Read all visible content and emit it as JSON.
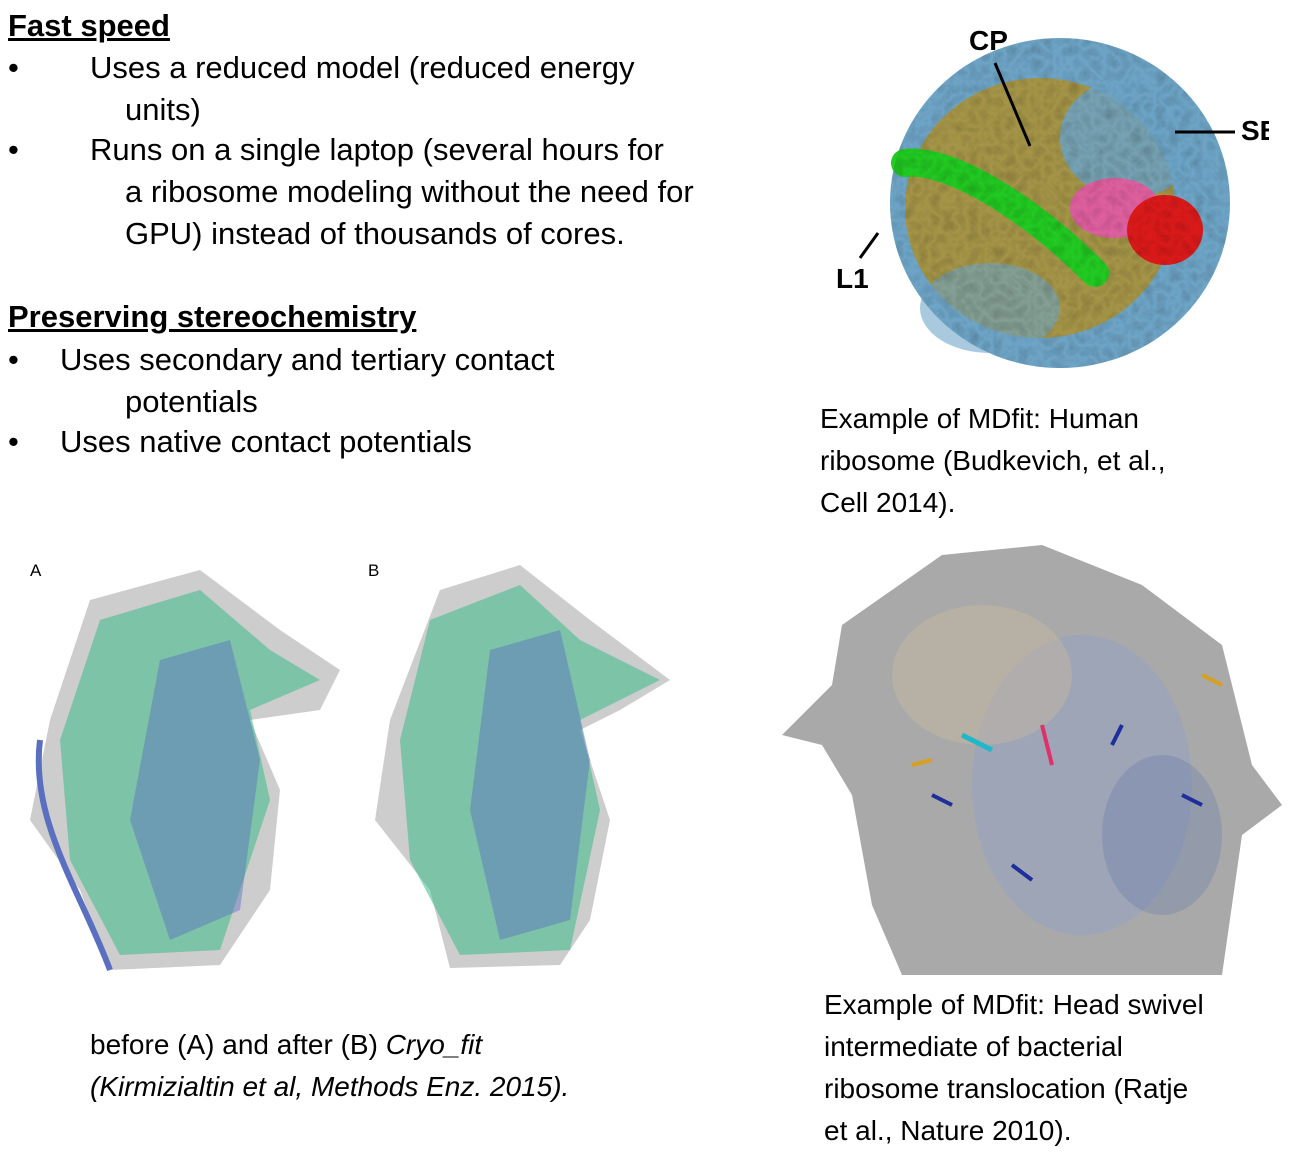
{
  "section1": {
    "heading": "Fast speed",
    "bullets": [
      {
        "lines": [
          "Uses a reduced model (reduced energy",
          "units)"
        ]
      },
      {
        "lines": [
          "Runs on a single laptop (several hours for",
          "a ribosome modeling without the need for",
          "GPU) instead of thousands of cores."
        ]
      }
    ]
  },
  "section2": {
    "heading": "Preserving stereochemistry",
    "bullets": [
      {
        "lines": [
          "Uses secondary and tertiary contact",
          "potentials"
        ]
      },
      {
        "lines": [
          "Uses native contact potentials"
        ]
      }
    ]
  },
  "bullet_glyph": "•",
  "figure_top_right": {
    "labels": {
      "cp": "CP",
      "sb": "SB",
      "l1": "L1"
    },
    "caption": [
      "Example of MDfit: Human",
      "ribosome (Budkevich, et al.,",
      "Cell 2014)."
    ]
  },
  "figure_bottom_left": {
    "panel_a": "A",
    "panel_b": "B",
    "caption_line1_plain": "before (A) and after (B) ",
    "caption_line1_italic": "Cryo_fit",
    "caption_line2": "(Kirmizialtin et al, Methods Enz. 2015)."
  },
  "figure_bottom_right": {
    "caption": [
      "Example of MDfit: Head swivel",
      "intermediate of bacterial",
      "ribosome translocation (Ratje",
      "et al., Nature 2010)."
    ]
  },
  "colors": {
    "rna_blue": "#6fa6c8",
    "protein_gold": "#b8901e",
    "trna_green": "#22cc22",
    "pink": "#e060a0",
    "red": "#dd1a1a",
    "cryo_green": "#3dbb8a",
    "cryo_blue": "#5a6fc0",
    "density_gray": "#b8b8b8"
  }
}
